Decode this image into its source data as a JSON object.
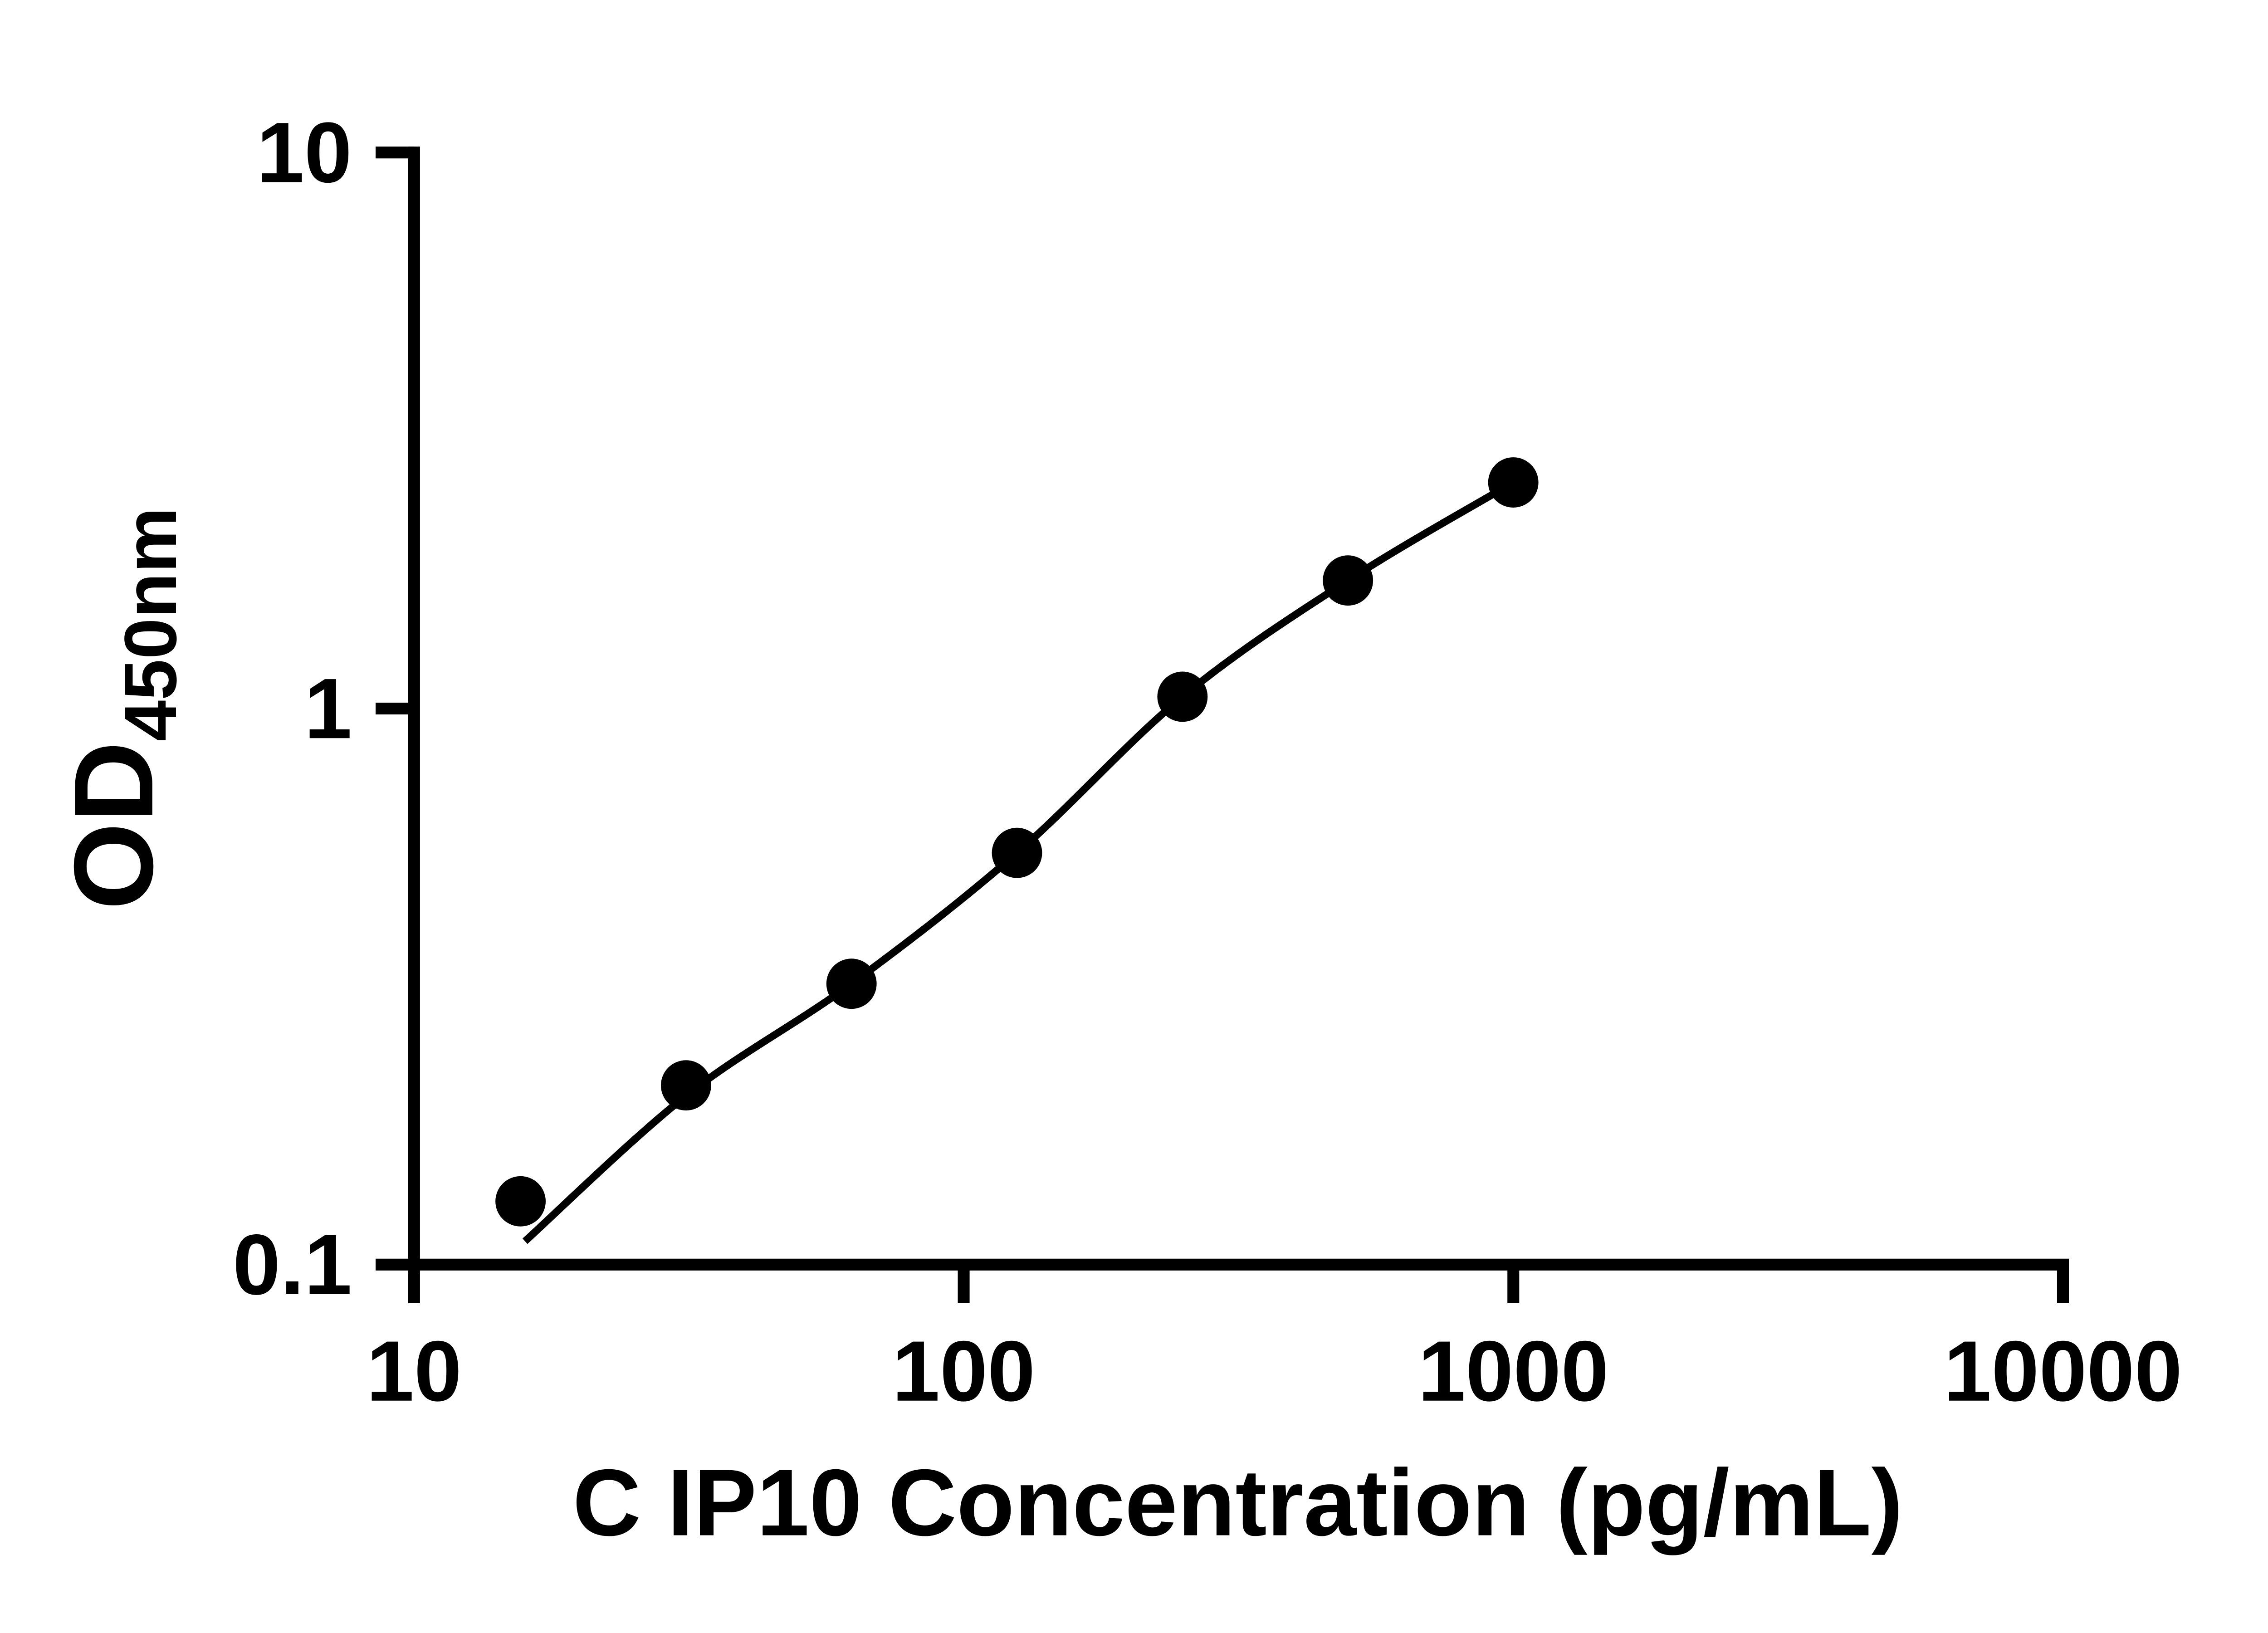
{
  "chart_data": {
    "type": "scatter",
    "title": "",
    "xlabel": "C IP10 Concentration (pg/mL)",
    "ylabel_main": "OD",
    "ylabel_sub": "450nm",
    "x_scale": "log",
    "y_scale": "log",
    "xlim": [
      10,
      10000
    ],
    "ylim": [
      0.1,
      10
    ],
    "grid": false,
    "legend": "none",
    "has_fit_line": true,
    "marker_color": "#000000",
    "line_color": "#000000",
    "x": [
      15.625,
      31.25,
      62.5,
      125,
      250,
      500,
      1000
    ],
    "y": [
      0.13,
      0.21,
      0.32,
      0.55,
      1.05,
      1.7,
      2.55
    ],
    "x_ticks": [
      {
        "value": 10,
        "label": "10"
      },
      {
        "value": 100,
        "label": "100"
      },
      {
        "value": 1000,
        "label": "1000"
      },
      {
        "value": 10000,
        "label": "10000"
      }
    ],
    "y_ticks": [
      {
        "value": 0.1,
        "label": "0.1"
      },
      {
        "value": 1,
        "label": "1"
      },
      {
        "value": 10,
        "label": "10"
      }
    ]
  }
}
